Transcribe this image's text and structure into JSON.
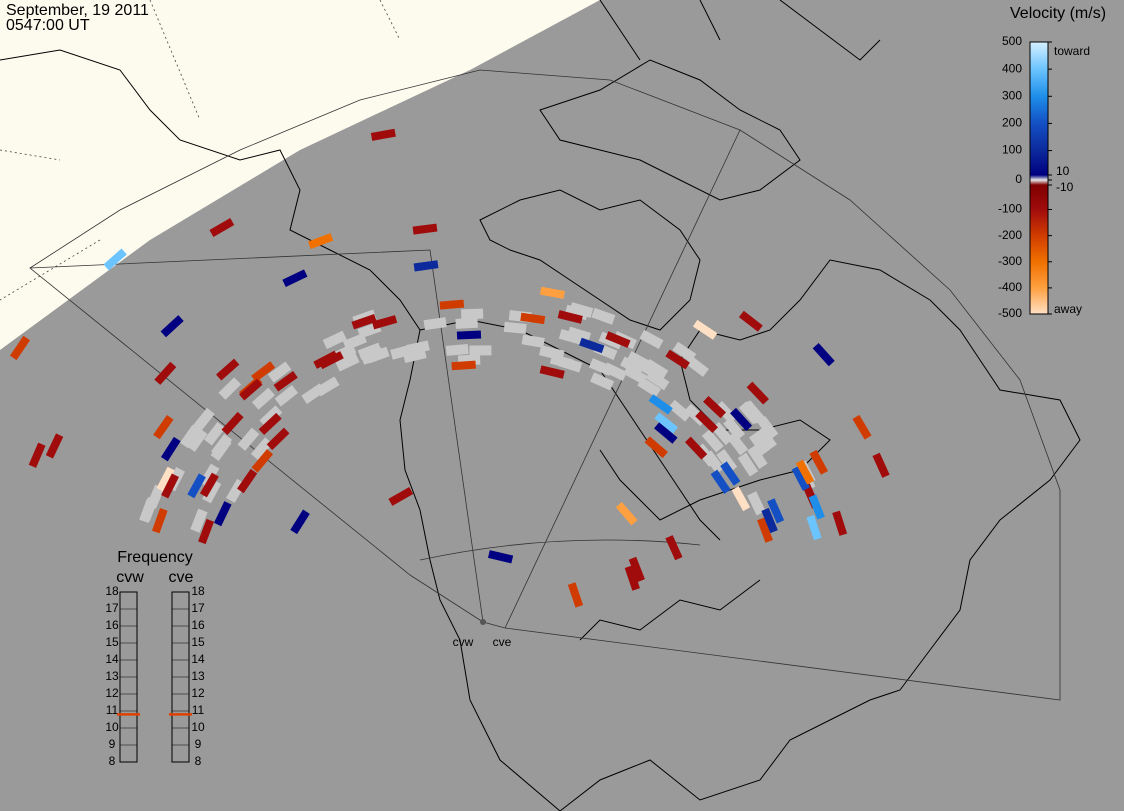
{
  "header": {
    "date": "September, 19 2011",
    "time": "0547:00 UT"
  },
  "velocity_scale": {
    "title": "Velocity (m/s)",
    "toward": "toward",
    "away": "away",
    "ticks": [
      500,
      400,
      300,
      200,
      100,
      10,
      0,
      -10,
      -100,
      -200,
      -300,
      -400,
      -500
    ],
    "colors": [
      "#d6f0ff",
      "#6cc4ff",
      "#1e8ee8",
      "#1450c4",
      "#0c2a9c",
      "#000080",
      "#e8e8e8",
      "#800000",
      "#a00c0c",
      "#d03c00",
      "#f07000",
      "#ffa040",
      "#ffe0c4"
    ]
  },
  "frequency": {
    "title": "Frequency",
    "range": [
      8,
      18
    ],
    "ticks": [
      8,
      9,
      10,
      11,
      12,
      13,
      14,
      15,
      16,
      17,
      18
    ],
    "values": [
      10.8,
      10.8
    ],
    "indicator_color": "#e04000"
  },
  "radars": [
    {
      "name": "cvw",
      "cells": [
        -120,
        -80,
        -60,
        -150,
        40,
        -90,
        -30,
        120,
        -200,
        -70,
        -100,
        30,
        -40,
        -500,
        -110,
        60,
        -85,
        -130,
        250,
        -95,
        -60,
        -70,
        20,
        -140,
        -50,
        -80,
        400,
        -100,
        -65,
        -180,
        30,
        -90,
        -75,
        -120,
        -55,
        -300,
        80,
        -100,
        -60,
        -45
      ]
    },
    {
      "name": "cve",
      "cells": [
        -90,
        300,
        -60,
        200,
        250,
        -150,
        -40,
        150,
        -100,
        40,
        -250,
        -70,
        450,
        -120,
        -60,
        30,
        -80,
        -350,
        300,
        -500,
        -110,
        60,
        -90,
        -70,
        200,
        -130,
        -400,
        -60,
        100,
        -85,
        400,
        -150,
        -45,
        -200,
        30,
        -100,
        -480,
        220,
        -95,
        -60
      ]
    }
  ]
}
